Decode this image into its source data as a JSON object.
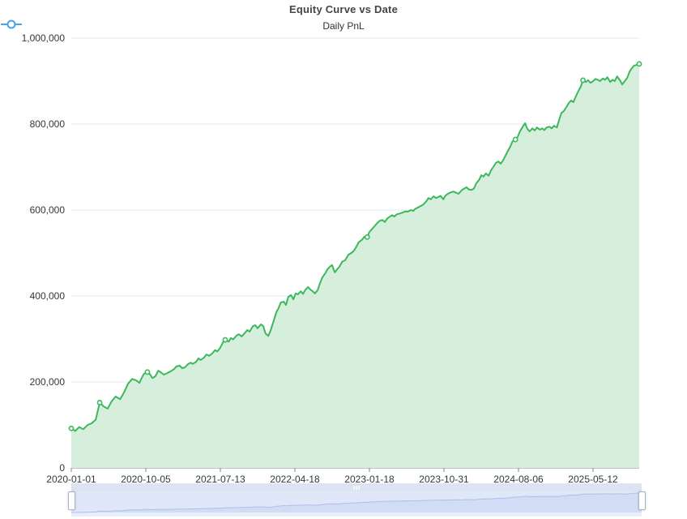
{
  "header": {
    "title": "Equity Curve vs Date"
  },
  "legend": {
    "items": [
      {
        "label": "Daily PnL",
        "icon": "line-circle-icon",
        "color": "#47a3e3"
      }
    ]
  },
  "colors": {
    "line": "#3cb85c",
    "area_fill": "#d6efdc",
    "gridline": "#e3e8f1",
    "axis": "#82868e",
    "axis_text": "#33373d",
    "nav_move_bar": "#dde4f1",
    "nav_grip": "#ffffff",
    "nav_body_bg": "#dfe7f9",
    "nav_area_fill": "#d2ddf5",
    "nav_line": "#aebfe8",
    "nav_bottom_strip": "#e9eefb",
    "nav_handle_border": "#a9b3c6"
  },
  "chart_data": {
    "type": "area",
    "title": "Equity Curve vs Date",
    "xlabel": "",
    "ylabel": "",
    "legend_position": "top",
    "grid": true,
    "ylim": [
      0,
      1000000
    ],
    "y_ticks": [
      {
        "value": 0,
        "label": "0"
      },
      {
        "value": 200000,
        "label": "200,000"
      },
      {
        "value": 400000,
        "label": "400,000"
      },
      {
        "value": 600000,
        "label": "600,000"
      },
      {
        "value": 800000,
        "label": "800,000"
      },
      {
        "value": 1000000,
        "label": "1,000,000"
      }
    ],
    "x_ticks": [
      "2020-01-01",
      "2020-10-05",
      "2021-07-13",
      "2022-04-18",
      "2023-01-18",
      "2023-10-31",
      "2024-08-06",
      "2025-05-12"
    ],
    "series": [
      {
        "name": "Daily PnL",
        "marker_fracs": [
          0.0,
          0.05,
          0.134,
          0.271,
          0.521,
          0.782,
          0.901,
          1.0
        ],
        "points": [
          [
            0.0,
            92000
          ],
          [
            0.007,
            86000
          ],
          [
            0.014,
            95000
          ],
          [
            0.021,
            90000
          ],
          [
            0.029,
            100000
          ],
          [
            0.036,
            104000
          ],
          [
            0.043,
            112000
          ],
          [
            0.05,
            152000
          ],
          [
            0.057,
            143000
          ],
          [
            0.064,
            138000
          ],
          [
            0.071,
            155000
          ],
          [
            0.078,
            166000
          ],
          [
            0.086,
            160000
          ],
          [
            0.093,
            176000
          ],
          [
            0.1,
            196000
          ],
          [
            0.107,
            207000
          ],
          [
            0.114,
            204000
          ],
          [
            0.12,
            198000
          ],
          [
            0.124,
            209000
          ],
          [
            0.128,
            219000
          ],
          [
            0.134,
            223000
          ],
          [
            0.138,
            219000
          ],
          [
            0.143,
            209000
          ],
          [
            0.148,
            213000
          ],
          [
            0.153,
            226000
          ],
          [
            0.157,
            223000
          ],
          [
            0.163,
            217000
          ],
          [
            0.168,
            220000
          ],
          [
            0.174,
            224000
          ],
          [
            0.181,
            230000
          ],
          [
            0.185,
            236000
          ],
          [
            0.191,
            238000
          ],
          [
            0.195,
            232000
          ],
          [
            0.2,
            234000
          ],
          [
            0.205,
            241000
          ],
          [
            0.21,
            245000
          ],
          [
            0.214,
            242000
          ],
          [
            0.22,
            247000
          ],
          [
            0.224,
            255000
          ],
          [
            0.228,
            251000
          ],
          [
            0.234,
            257000
          ],
          [
            0.238,
            264000
          ],
          [
            0.243,
            261000
          ],
          [
            0.248,
            266000
          ],
          [
            0.253,
            274000
          ],
          [
            0.257,
            271000
          ],
          [
            0.262,
            279000
          ],
          [
            0.267,
            292000
          ],
          [
            0.271,
            298000
          ],
          [
            0.277,
            294000
          ],
          [
            0.281,
            302000
          ],
          [
            0.285,
            299000
          ],
          [
            0.291,
            308000
          ],
          [
            0.295,
            311000
          ],
          [
            0.3,
            306000
          ],
          [
            0.305,
            313000
          ],
          [
            0.31,
            321000
          ],
          [
            0.314,
            317000
          ],
          [
            0.32,
            330000
          ],
          [
            0.324,
            332000
          ],
          [
            0.328,
            325000
          ],
          [
            0.334,
            334000
          ],
          [
            0.338,
            330000
          ],
          [
            0.342,
            313000
          ],
          [
            0.347,
            307000
          ],
          [
            0.351,
            320000
          ],
          [
            0.357,
            345000
          ],
          [
            0.361,
            362000
          ],
          [
            0.365,
            372000
          ],
          [
            0.369,
            385000
          ],
          [
            0.374,
            387000
          ],
          [
            0.378,
            379000
          ],
          [
            0.382,
            398000
          ],
          [
            0.387,
            402000
          ],
          [
            0.391,
            392000
          ],
          [
            0.395,
            406000
          ],
          [
            0.399,
            404000
          ],
          [
            0.404,
            411000
          ],
          [
            0.408,
            405000
          ],
          [
            0.412,
            414000
          ],
          [
            0.417,
            421000
          ],
          [
            0.421,
            415000
          ],
          [
            0.425,
            411000
          ],
          [
            0.429,
            406000
          ],
          [
            0.434,
            414000
          ],
          [
            0.438,
            430000
          ],
          [
            0.442,
            443000
          ],
          [
            0.447,
            452000
          ],
          [
            0.451,
            462000
          ],
          [
            0.455,
            468000
          ],
          [
            0.459,
            472000
          ],
          [
            0.464,
            455000
          ],
          [
            0.468,
            462000
          ],
          [
            0.472,
            468000
          ],
          [
            0.477,
            480000
          ],
          [
            0.482,
            483000
          ],
          [
            0.488,
            496000
          ],
          [
            0.494,
            501000
          ],
          [
            0.498,
            506000
          ],
          [
            0.502,
            515000
          ],
          [
            0.506,
            525000
          ],
          [
            0.512,
            531000
          ],
          [
            0.516,
            538000
          ],
          [
            0.521,
            537000
          ],
          [
            0.525,
            549000
          ],
          [
            0.531,
            558000
          ],
          [
            0.535,
            564000
          ],
          [
            0.539,
            570000
          ],
          [
            0.543,
            575000
          ],
          [
            0.548,
            577000
          ],
          [
            0.552,
            572000
          ],
          [
            0.556,
            580000
          ],
          [
            0.561,
            585000
          ],
          [
            0.565,
            588000
          ],
          [
            0.569,
            585000
          ],
          [
            0.573,
            590000
          ],
          [
            0.579,
            592000
          ],
          [
            0.583,
            594000
          ],
          [
            0.588,
            597000
          ],
          [
            0.592,
            596000
          ],
          [
            0.598,
            600000
          ],
          [
            0.602,
            598000
          ],
          [
            0.606,
            603000
          ],
          [
            0.612,
            607000
          ],
          [
            0.616,
            610000
          ],
          [
            0.62,
            613000
          ],
          [
            0.625,
            620000
          ],
          [
            0.629,
            628000
          ],
          [
            0.633,
            625000
          ],
          [
            0.638,
            632000
          ],
          [
            0.642,
            628000
          ],
          [
            0.646,
            630000
          ],
          [
            0.65,
            633000
          ],
          [
            0.655,
            625000
          ],
          [
            0.659,
            634000
          ],
          [
            0.663,
            638000
          ],
          [
            0.668,
            641000
          ],
          [
            0.673,
            643000
          ],
          [
            0.678,
            640000
          ],
          [
            0.682,
            638000
          ],
          [
            0.688,
            647000
          ],
          [
            0.692,
            650000
          ],
          [
            0.696,
            653000
          ],
          [
            0.7,
            648000
          ],
          [
            0.705,
            647000
          ],
          [
            0.709,
            650000
          ],
          [
            0.713,
            662000
          ],
          [
            0.718,
            670000
          ],
          [
            0.722,
            681000
          ],
          [
            0.726,
            678000
          ],
          [
            0.73,
            685000
          ],
          [
            0.735,
            680000
          ],
          [
            0.739,
            692000
          ],
          [
            0.743,
            700000
          ],
          [
            0.748,
            710000
          ],
          [
            0.752,
            713000
          ],
          [
            0.756,
            708000
          ],
          [
            0.76,
            715000
          ],
          [
            0.765,
            728000
          ],
          [
            0.769,
            738000
          ],
          [
            0.773,
            748000
          ],
          [
            0.777,
            760000
          ],
          [
            0.782,
            764000
          ],
          [
            0.786,
            770000
          ],
          [
            0.79,
            783000
          ],
          [
            0.795,
            794000
          ],
          [
            0.799,
            802000
          ],
          [
            0.803,
            789000
          ],
          [
            0.807,
            783000
          ],
          [
            0.812,
            790000
          ],
          [
            0.816,
            785000
          ],
          [
            0.82,
            792000
          ],
          [
            0.825,
            787000
          ],
          [
            0.829,
            790000
          ],
          [
            0.833,
            786000
          ],
          [
            0.837,
            792000
          ],
          [
            0.842,
            794000
          ],
          [
            0.846,
            790000
          ],
          [
            0.85,
            796000
          ],
          [
            0.855,
            792000
          ],
          [
            0.859,
            810000
          ],
          [
            0.863,
            826000
          ],
          [
            0.867,
            830000
          ],
          [
            0.872,
            840000
          ],
          [
            0.876,
            849000
          ],
          [
            0.88,
            855000
          ],
          [
            0.884,
            851000
          ],
          [
            0.889,
            866000
          ],
          [
            0.893,
            877000
          ],
          [
            0.897,
            887000
          ],
          [
            0.901,
            902000
          ],
          [
            0.906,
            898000
          ],
          [
            0.91,
            902000
          ],
          [
            0.914,
            896000
          ],
          [
            0.919,
            900000
          ],
          [
            0.923,
            905000
          ],
          [
            0.927,
            903000
          ],
          [
            0.931,
            900000
          ],
          [
            0.936,
            906000
          ],
          [
            0.94,
            903000
          ],
          [
            0.944,
            909000
          ],
          [
            0.949,
            898000
          ],
          [
            0.953,
            903000
          ],
          [
            0.957,
            900000
          ],
          [
            0.961,
            911000
          ],
          [
            0.966,
            902000
          ],
          [
            0.97,
            892000
          ],
          [
            0.974,
            899000
          ],
          [
            0.979,
            908000
          ],
          [
            0.983,
            922000
          ],
          [
            0.987,
            930000
          ],
          [
            0.991,
            936000
          ],
          [
            0.996,
            938000
          ],
          [
            1.0,
            940000
          ]
        ]
      }
    ]
  },
  "navigator": {
    "selected_range": "full"
  }
}
